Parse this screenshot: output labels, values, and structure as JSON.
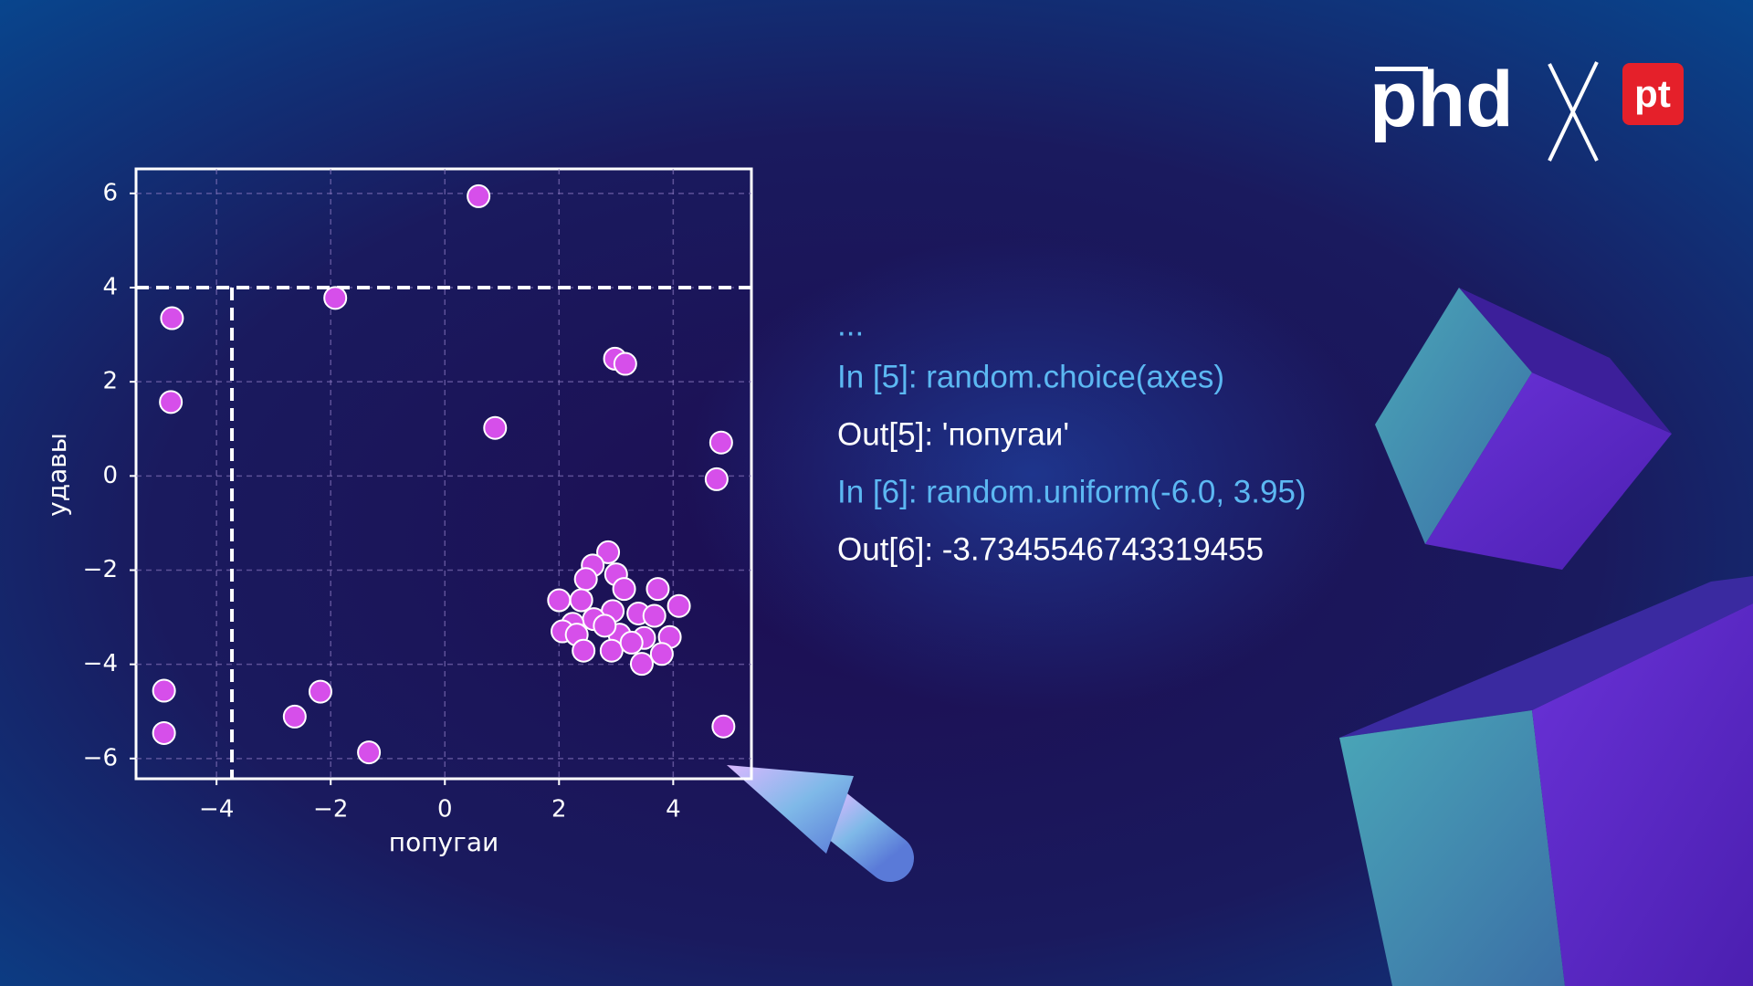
{
  "chart_data": {
    "type": "scatter",
    "xlabel": "попугаи",
    "ylabel": "удавы",
    "color": "#d64fea",
    "x": [
      0.59,
      -4.78,
      -1.92,
      -4.8,
      0.88,
      2.98,
      3.16,
      4.84,
      4.76,
      -4.92,
      -4.92,
      -2.63,
      -2.18,
      -1.33,
      4.88,
      2.86,
      2.59,
      3.0,
      2.47,
      3.14,
      3.73,
      2.0,
      2.39,
      4.1,
      2.94,
      2.61,
      3.39,
      2.24,
      3.67,
      2.06,
      3.06,
      3.49,
      2.31,
      3.94,
      2.43,
      2.92,
      3.8,
      3.45,
      3.27,
      2.8
    ],
    "values": [
      5.94,
      3.35,
      3.78,
      1.57,
      1.02,
      2.49,
      2.38,
      0.71,
      -0.07,
      -4.56,
      -5.46,
      -5.11,
      -4.58,
      -5.87,
      -5.32,
      -1.62,
      -1.9,
      -2.09,
      -2.19,
      -2.4,
      -2.4,
      -2.64,
      -2.64,
      -2.76,
      -2.87,
      -3.04,
      -2.92,
      -3.14,
      -2.97,
      -3.3,
      -3.37,
      -3.44,
      -3.37,
      -3.42,
      -3.71,
      -3.71,
      -3.78,
      -3.99,
      -3.54,
      -3.18
    ],
    "xlim": [
      -5.41,
      5.37
    ],
    "ylim": [
      -6.43,
      6.52
    ],
    "xticks": [
      {
        "value": -4,
        "label": "−4"
      },
      {
        "value": -2,
        "label": "−2"
      },
      0,
      2,
      4
    ],
    "yticks": [
      {
        "value": -6,
        "label": "−6"
      },
      {
        "value": -4,
        "label": "−4"
      },
      {
        "value": -2,
        "label": "−2"
      },
      0,
      2,
      4,
      6
    ],
    "grid": true,
    "hline": 4,
    "vline": -3.73
  },
  "console": [
    "...",
    "In [5]: random.choice(axes)",
    "Out[5]: 'попугаи'",
    "In [6]: random.uniform(-6.0, 3.95)",
    "Out[6]: -3.7345546743319455"
  ],
  "logo": {
    "brand": "phd",
    "badge": "pt"
  }
}
